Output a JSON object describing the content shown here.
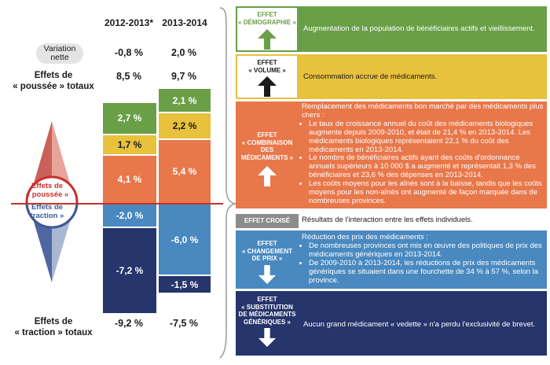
{
  "chart_data": {
    "type": "bar",
    "categories": [
      "2012-2013*",
      "2013-2014"
    ],
    "series": [
      {
        "name": "Effets de « poussée »",
        "values": [
          [
            2.7,
            1.7,
            4.1
          ],
          [
            2.1,
            2.2,
            5.4
          ]
        ]
      },
      {
        "name": "Effets de « traction »",
        "values": [
          [
            -2.0,
            -7.2
          ],
          [
            -6.0,
            -1.5
          ]
        ]
      }
    ],
    "columns": [
      {
        "year": "2012-2013*",
        "variation": "-0,8 %",
        "push_total": "8,5 %",
        "pull_total": "-9,2 %",
        "segments": [
          {
            "value": 2.7,
            "label": "2,7 %",
            "color": "#6a9f48",
            "text_dark": false
          },
          {
            "value": 1.7,
            "label": "1,7 %",
            "color": "#e8c13d",
            "text_dark": true
          },
          {
            "value": 4.1,
            "label": "4,1 %",
            "color": "#e8774a",
            "text_dark": false
          },
          {
            "value": -2.0,
            "label": "-2,0 %",
            "color": "#4989c0",
            "text_dark": false
          },
          {
            "value": -7.2,
            "label": "-7,2 %",
            "color": "#26356b",
            "text_dark": false
          }
        ]
      },
      {
        "year": "2013-2014",
        "variation": "2,0 %",
        "push_total": "9,7 %",
        "pull_total": "-7,5 %",
        "segments": [
          {
            "value": 2.1,
            "label": "2,1 %",
            "color": "#6a9f48",
            "text_dark": false
          },
          {
            "value": 2.2,
            "label": "2,2 %",
            "color": "#e8c13d",
            "text_dark": true
          },
          {
            "value": 5.4,
            "label": "5,4 %",
            "color": "#e8774a",
            "text_dark": false
          },
          {
            "value": -6.0,
            "label": "-6,0 %",
            "color": "#4989c0",
            "text_dark": false
          },
          {
            "value": -1.5,
            "label": "-1,5 %",
            "color": "#26356b",
            "text_dark": false
          }
        ]
      }
    ]
  },
  "labels": {
    "variation": "Variation nette",
    "push_totals_l1": "Effets de",
    "push_totals_l2": "« poussée » totaux",
    "pull_totals_l1": "Effets de",
    "pull_totals_l2": "« traction » totaux",
    "compass_push_l1": "Effets de",
    "compass_push_l2": "« poussée »",
    "compass_pull_l1": "Effets de",
    "compass_pull_l2": "traction »"
  },
  "panels": {
    "demographie": {
      "tag": [
        "EFFET",
        "« DÉMOGRAPHIE »"
      ],
      "color": "#6a9f48",
      "desc": "Augmentation de la population de bénéficiaires actifs et vieillissement."
    },
    "volume": {
      "tag": [
        "EFFET",
        "« VOLUME »"
      ],
      "color": "#e8c13d",
      "desc": "Consommation accrue de médicaments."
    },
    "combinaison": {
      "tag": [
        "EFFET",
        "« COMBINAISON",
        "DES",
        "MÉDICAMENTS »"
      ],
      "color": "#e8774a",
      "intro": "Remplacement des médicaments bon marché par des médicaments plus chers :",
      "bullets": [
        "Le taux de croissance annuel du coût des médicaments biologiques augmente depuis 2009-2010, et était de 21,4 % en 2013-2014. Les médicaments biologiques représentaient 22,1 % du coût des médicaments en 2013-2014.",
        "Le nombre de bénéficiaires actifs ayant des coûts d'ordonnance annuels supérieurs à 10 000 $ a augmenté et représentait 1,3 % des bénéficiaires et 23,6 % des dépenses en 2013-2014.",
        "Les coûts moyens pour les aînés sont à la baisse, tandis que les coûts moyens pour les non-aînés ont augmenté de façon marquée dans de nombreuses provinces."
      ]
    },
    "croise": {
      "tag": [
        "EFFET CROISÉ"
      ],
      "color": "#8c8c8c",
      "desc": "Résultats de l'interaction entre les effets individuels."
    },
    "prix": {
      "tag": [
        "EFFET",
        "« CHANGEMENT",
        "DE PRIX »"
      ],
      "color": "#4989c0",
      "intro": "Réduction des prix des médicaments :",
      "bullets": [
        "De nombreuses provinces ont mis en œuvre des politiques de prix des médicaments génériques en 2013-2014.",
        "De 2009-2010 à 2013-2014, les réductions de prix des médicaments génériques se situaient dans une fourchette de 34 % à 57 %, selon la province."
      ]
    },
    "substitution": {
      "tag": [
        "EFFET",
        "« SUBSTITUTION",
        "DE MÉDICAMENTS",
        "GÉNÉRIQUES »"
      ],
      "color": "#26356b",
      "desc": "Aucun grand médicament « vedette » n'a perdu l'exclusivité de brevet."
    }
  }
}
